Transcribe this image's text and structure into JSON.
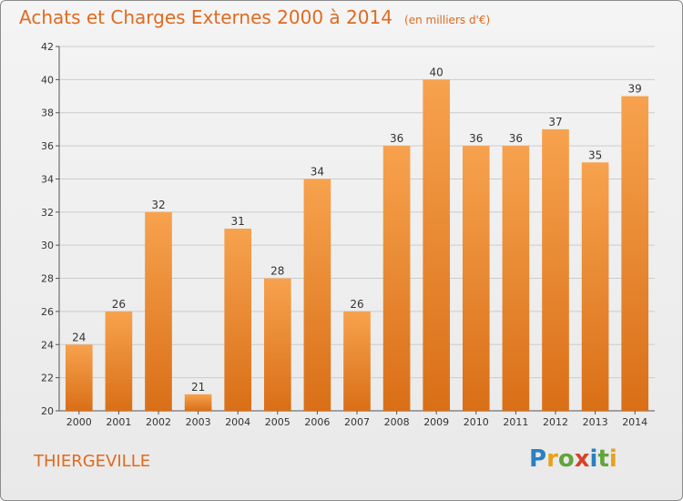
{
  "chart_data": {
    "type": "bar",
    "title": "Achats et Charges Externes 2000 à 2014",
    "subtitle": "(en milliers d'€)",
    "categories": [
      "2000",
      "2001",
      "2002",
      "2003",
      "2004",
      "2005",
      "2006",
      "2007",
      "2008",
      "2009",
      "2010",
      "2011",
      "2012",
      "2013",
      "2014"
    ],
    "values": [
      24,
      26,
      32,
      21,
      31,
      28,
      34,
      26,
      36,
      40,
      36,
      36,
      37,
      35,
      39
    ],
    "ylim": [
      20,
      42
    ],
    "yticks": [
      20,
      22,
      24,
      26,
      28,
      30,
      32,
      34,
      36,
      38,
      40,
      42
    ],
    "grid": true,
    "xlabel": "",
    "ylabel": "",
    "bar_color_top": "#f7a24e",
    "bar_color_bottom": "#d96f17"
  },
  "footer": {
    "commune": "THIERGEVILLE",
    "brand_letters": [
      {
        "char": "P",
        "color": "#2c7fc1"
      },
      {
        "char": "r",
        "color": "#e8a21a"
      },
      {
        "char": "o",
        "color": "#62a53a"
      },
      {
        "char": "x",
        "color": "#d9412a"
      },
      {
        "char": "i",
        "color": "#2c7fc1"
      },
      {
        "char": "t",
        "color": "#62a53a"
      },
      {
        "char": "i",
        "color": "#e8a21a"
      }
    ]
  },
  "colors": {
    "title": "#e06a1f",
    "grid": "#cccccc",
    "axis": "#555555"
  }
}
